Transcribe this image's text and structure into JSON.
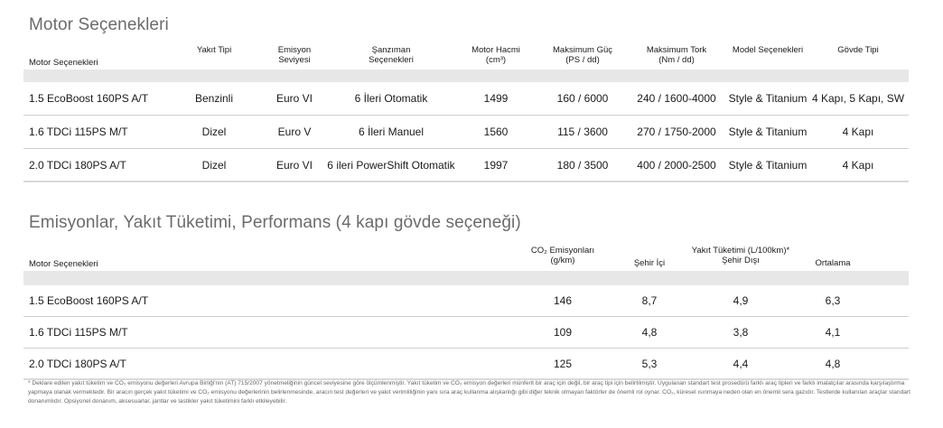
{
  "section1": {
    "title": "Motor Seçenekleri",
    "headers": {
      "engine": "Motor Seçenekleri",
      "fuel": "Yakıt Tipi",
      "emission_1": "Emisyon",
      "emission_2": "Seviyesi",
      "gearbox_1": "Şanzıman",
      "gearbox_2": "Seçenekleri",
      "displacement_1": "Motor Hacmi",
      "displacement_2": "(cm³)",
      "power_1": "Maksimum Güç",
      "power_2": "(PS / dd)",
      "torque_1": "Maksimum Tork",
      "torque_2": "(Nm / dd)",
      "model": "Model Seçenekleri",
      "body": "Gövde Tipi"
    },
    "rows": [
      {
        "engine": "1.5 EcoBoost 160PS A/T",
        "fuel": "Benzinli",
        "emission": "Euro VI",
        "gearbox": "6 İleri Otomatik",
        "displacement": "1499",
        "power": "160 / 6000",
        "torque": "240 / 1600-4000",
        "model": "Style & Titanium",
        "body": "4 Kapı, 5 Kapı, SW"
      },
      {
        "engine": "1.6 TDCi 115PS M/T",
        "fuel": "Dizel",
        "emission": "Euro V",
        "gearbox": "6 İleri Manuel",
        "displacement": "1560",
        "power": "115 / 3600",
        "torque": "270 / 1750-2000",
        "model": "Style & Titanium",
        "body": "4 Kapı"
      },
      {
        "engine": "2.0 TDCi 180PS A/T",
        "fuel": "Dizel",
        "emission": "Euro VI",
        "gearbox": "6 ileri PowerShift Otomatik",
        "displacement": "1997",
        "power": "180 / 3500",
        "torque": "400 / 2000-2500",
        "model": "Style & Titanium",
        "body": "4 Kapı"
      }
    ]
  },
  "section2": {
    "title": "Emisyonlar, Yakıt Tüketimi, Performans (4 kapı gövde seçeneği)",
    "headers": {
      "engine": "Motor Seçenekleri",
      "co2_1": "CO₂ Emisyonları",
      "co2_2": "(g/km)",
      "consumption": "Yakıt Tüketimi (L/100km)*",
      "city": "Şehir İçi",
      "highway": "Şehir Dışı",
      "average": "Ortalama"
    },
    "rows": [
      {
        "engine": "1.5 EcoBoost 160PS A/T",
        "co2": "146",
        "city": "8,7",
        "highway": "4,9",
        "average": "6,3"
      },
      {
        "engine": "1.6 TDCi 115PS M/T",
        "co2": "109",
        "city": "4,8",
        "highway": "3,8",
        "average": "4,1"
      },
      {
        "engine": "2.0 TDCi 180PS A/T",
        "co2": "125",
        "city": "5,3",
        "highway": "4,4",
        "average": "4,8"
      }
    ]
  },
  "footnote": "* Deklare edilen yakıt tüketim ve CO₂ emisyonu değerleri Avrupa Birliği'nin (AT) 715/2007 yönetmeliğinin güncel seviyesine göre ölçümlenmiştir. Yakıt tüketim ve CO₂ emisyon değerleri münferit bir araç için değil, bir araç tipi için belirtilmiştir. Uygulanan standart test prosedürü farklı araç tipleri ve farklı imalatçılar arasında karşılaştırma yapmaya olanak vermektedir. Bir aracın gerçek yakıt tüketimi ve CO₂ emisyonu değerlerinin belirlenmesinde, aracın test değerleri ve yakıt verimliliğinin yanı sıra araç kullanma alışkanlığı gibi diğer teknik olmayan faktörler de önemli rol oynar. CO₂, küresel ısınmaya neden olan en önemli sera gazıdır. Testlerde kullanılan araçlar standart donanımlıdır. Opsiyonel donanım, aksesuarlar, jantlar ve lastikler yakıt tüketimini farklı etkileyebilir."
}
